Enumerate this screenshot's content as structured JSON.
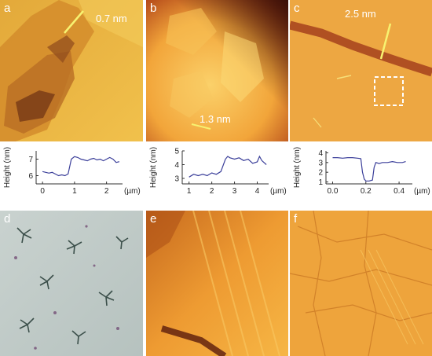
{
  "panels": {
    "a": {
      "label": "a",
      "annotation": "0.7 nm"
    },
    "b": {
      "label": "b",
      "annotation": "1.3 nm"
    },
    "c": {
      "label": "c",
      "annotation": "2.5 nm"
    },
    "d": {
      "label": "d"
    },
    "e": {
      "label": "e"
    },
    "f": {
      "label": "f"
    }
  },
  "chart_data": [
    {
      "type": "line",
      "ylabel": "Height (nm)",
      "xunit": "(µm)",
      "x_ticks": [
        "0",
        "1",
        "2"
      ],
      "y_ticks": [
        "6",
        "7"
      ],
      "xlim": [
        -0.2,
        2.5
      ],
      "ylim": [
        5.5,
        7.5
      ],
      "line_color": "#3b3f9a",
      "x": [
        0,
        0.1,
        0.2,
        0.3,
        0.4,
        0.5,
        0.6,
        0.7,
        0.8,
        0.9,
        1.0,
        1.1,
        1.2,
        1.3,
        1.4,
        1.5,
        1.6,
        1.7,
        1.8,
        1.9,
        2.0,
        2.1,
        2.2,
        2.3,
        2.4
      ],
      "y": [
        6.25,
        6.2,
        6.15,
        6.2,
        6.1,
        6.0,
        6.05,
        6.0,
        6.1,
        7.0,
        7.15,
        7.1,
        7.0,
        6.95,
        6.9,
        7.0,
        7.05,
        6.95,
        7.0,
        6.9,
        7.0,
        7.1,
        7.0,
        6.8,
        6.85
      ]
    },
    {
      "type": "line",
      "ylabel": "Height (nm)",
      "xunit": "(µm)",
      "x_ticks": [
        "1",
        "2",
        "3",
        "4"
      ],
      "y_ticks": [
        "3",
        "4",
        "5"
      ],
      "xlim": [
        0.7,
        4.5
      ],
      "ylim": [
        2.6,
        5.0
      ],
      "line_color": "#3b3f9a",
      "x": [
        1.0,
        1.2,
        1.4,
        1.6,
        1.8,
        2.0,
        2.2,
        2.4,
        2.6,
        2.7,
        2.8,
        3.0,
        3.2,
        3.4,
        3.6,
        3.8,
        4.0,
        4.1,
        4.2,
        4.4
      ],
      "y": [
        3.1,
        3.3,
        3.2,
        3.3,
        3.2,
        3.4,
        3.3,
        3.5,
        4.4,
        4.6,
        4.5,
        4.4,
        4.5,
        4.3,
        4.4,
        4.1,
        4.2,
        4.6,
        4.3,
        4.0
      ]
    },
    {
      "type": "line",
      "ylabel": "Height (nm)",
      "xunit": "(µm)",
      "x_ticks": [
        "0.0",
        "0.2",
        "0.4"
      ],
      "y_ticks": [
        "1",
        "2",
        "3",
        "4"
      ],
      "xlim": [
        -0.04,
        0.48
      ],
      "ylim": [
        0.8,
        4.2
      ],
      "line_color": "#3b3f9a",
      "x": [
        0.0,
        0.03,
        0.06,
        0.09,
        0.12,
        0.15,
        0.17,
        0.18,
        0.19,
        0.2,
        0.22,
        0.24,
        0.25,
        0.26,
        0.28,
        0.3,
        0.33,
        0.36,
        0.39,
        0.42,
        0.44
      ],
      "y": [
        3.5,
        3.5,
        3.45,
        3.5,
        3.5,
        3.45,
        3.4,
        2.0,
        1.3,
        1.1,
        1.1,
        1.2,
        2.5,
        3.0,
        2.9,
        3.0,
        3.0,
        3.1,
        3.0,
        3.0,
        3.1
      ]
    }
  ]
}
